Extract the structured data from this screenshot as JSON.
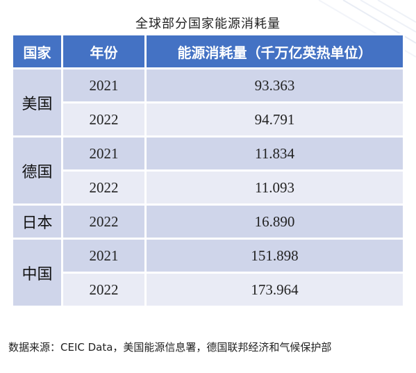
{
  "title": "全球部分国家能源消耗量",
  "table": {
    "headers": [
      "国家",
      "年份",
      "能源消耗量（千万亿英热单位）"
    ],
    "groups": [
      {
        "country": "美国",
        "rows": [
          {
            "year": "2021",
            "value": "93.363"
          },
          {
            "year": "2022",
            "value": "94.791"
          }
        ]
      },
      {
        "country": "德国",
        "rows": [
          {
            "year": "2021",
            "value": "11.834"
          },
          {
            "year": "2022",
            "value": "11.093"
          }
        ]
      },
      {
        "country": "日本",
        "rows": [
          {
            "year": "2022",
            "value": "16.890"
          }
        ]
      },
      {
        "country": "中国",
        "rows": [
          {
            "year": "2021",
            "value": "151.898"
          },
          {
            "year": "2022",
            "value": "173.964"
          }
        ]
      }
    ]
  },
  "source": "数据来源：CEIC Data，美国能源信息署，德国联邦经济和气候保护部",
  "colors": {
    "header_bg": "#4472c4",
    "band_dark": "#cfd5ea",
    "band_light": "#e9ebf5"
  }
}
